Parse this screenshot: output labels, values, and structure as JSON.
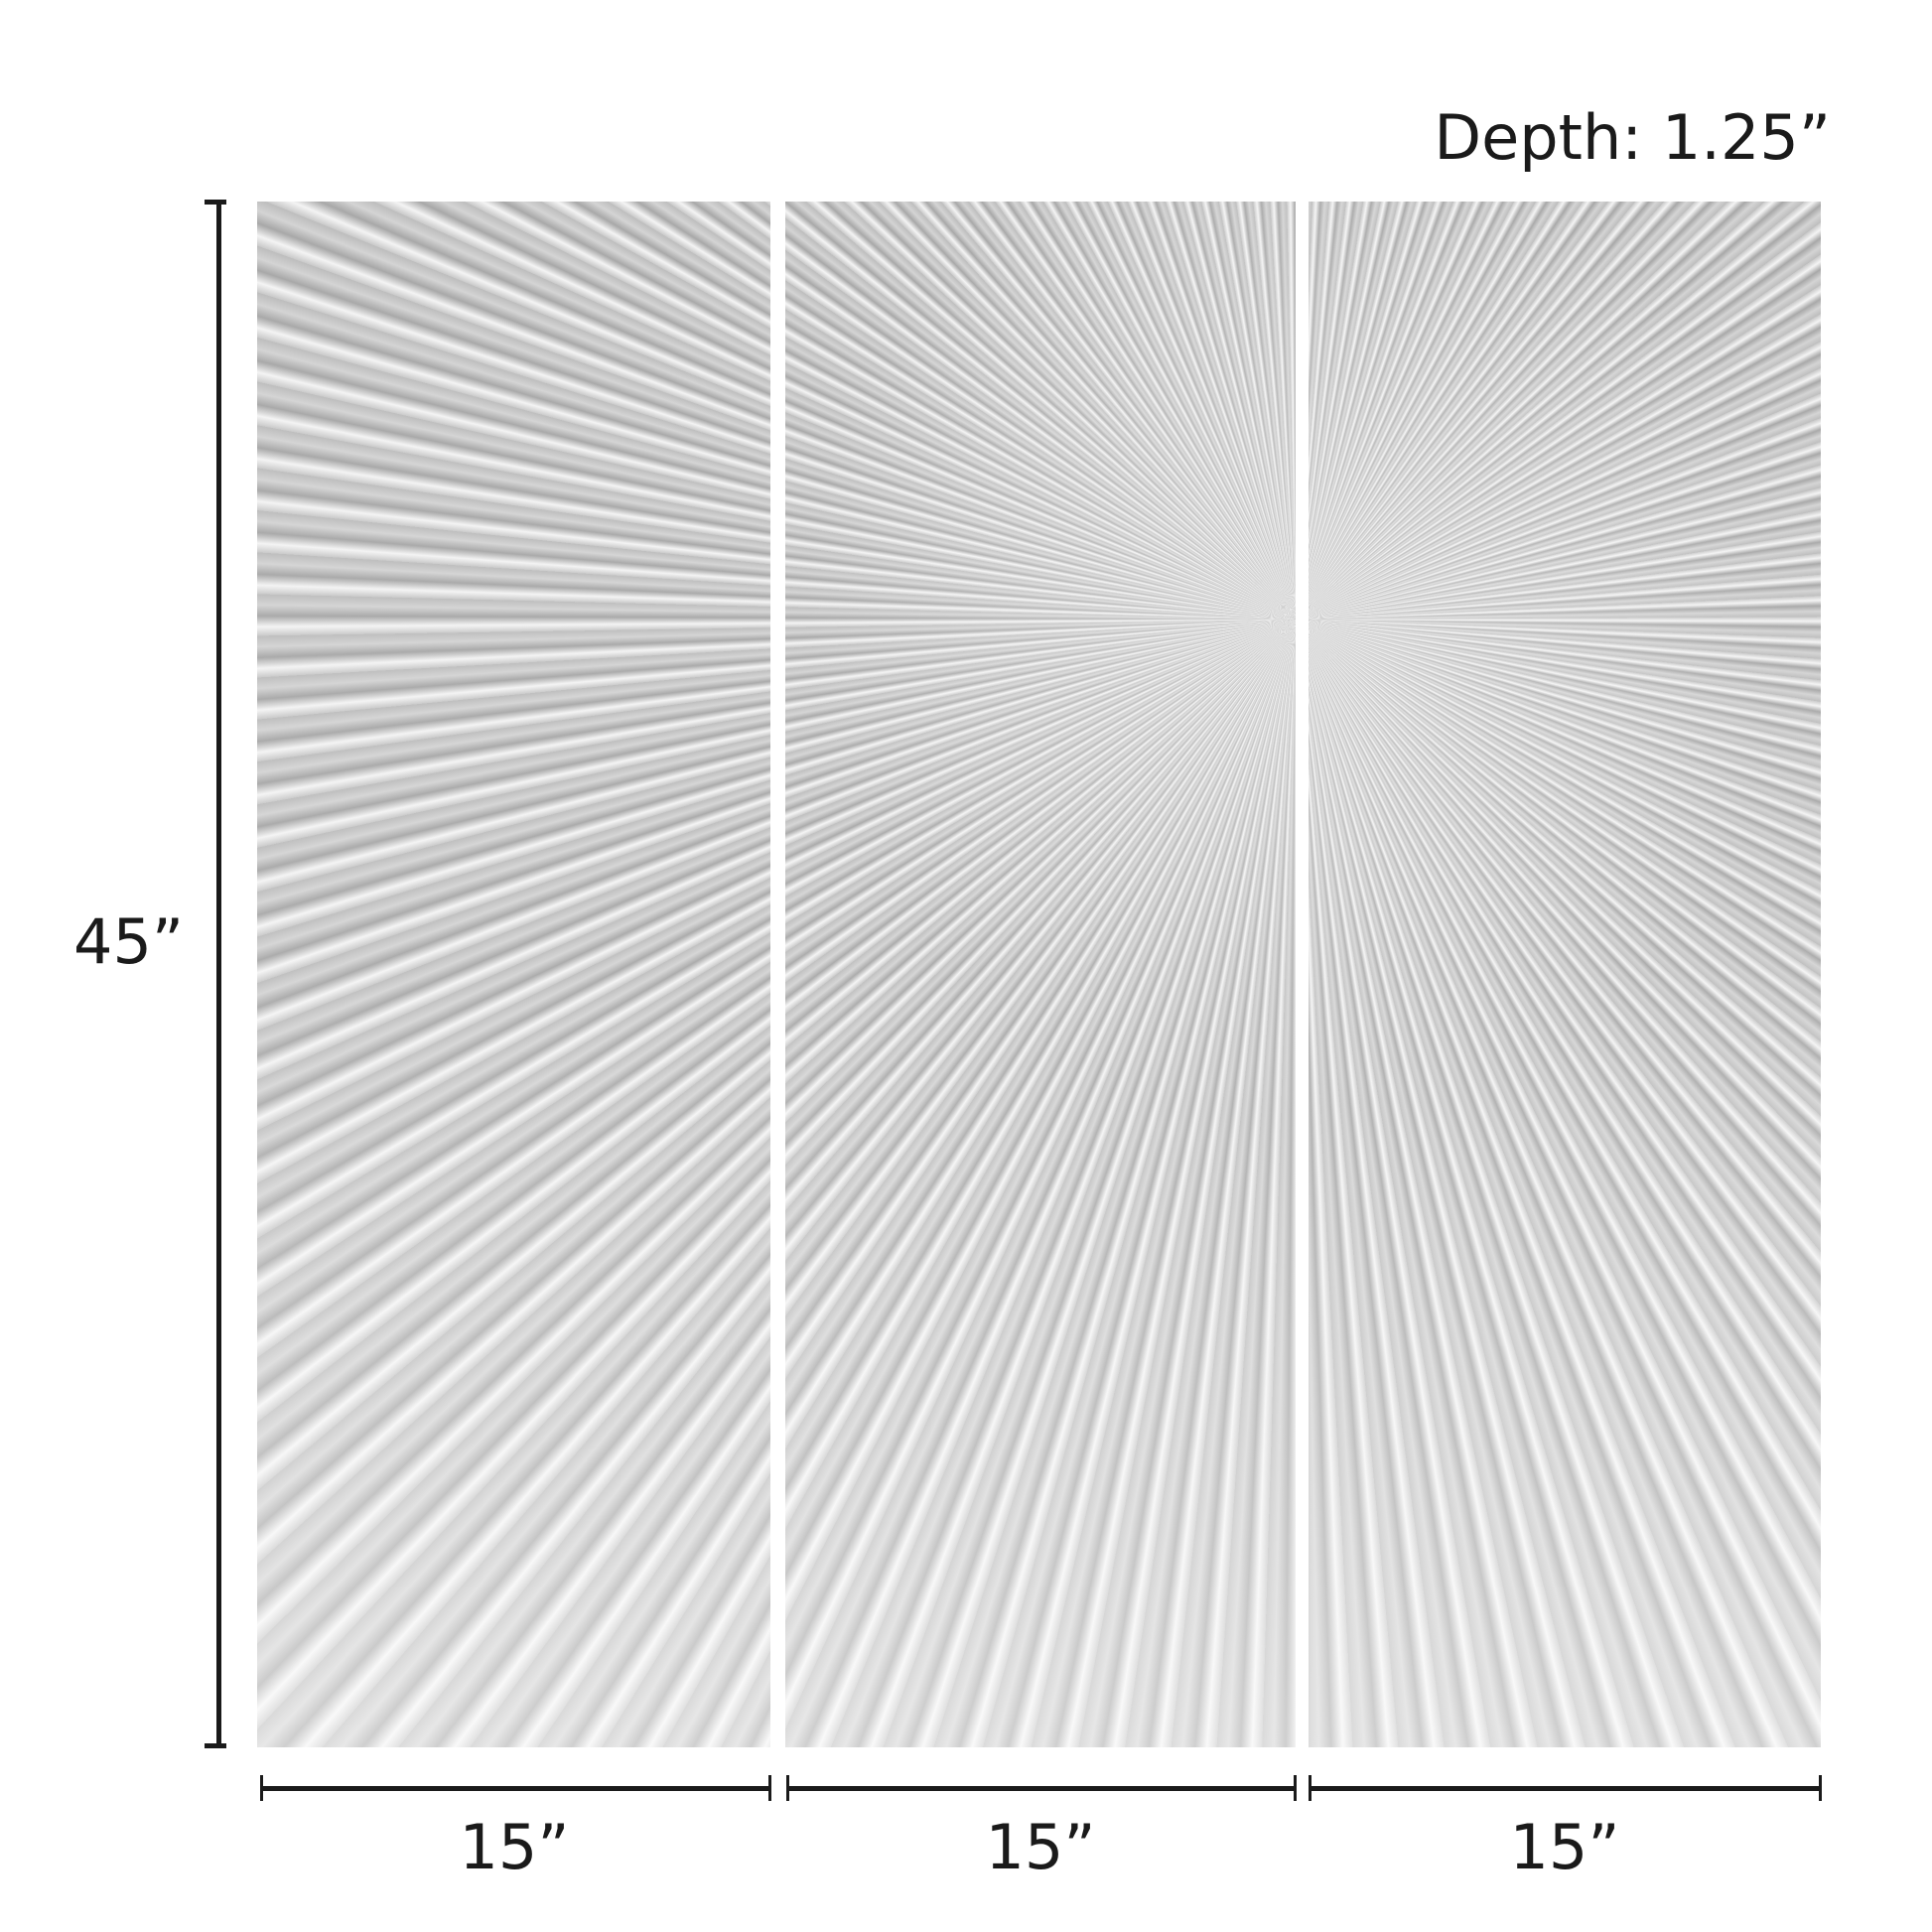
{
  "depth_label": "Depth: 1.25”",
  "height_label": "45”",
  "panel_widths": [
    "15”",
    "15”",
    "15”"
  ],
  "panel_count": 3,
  "panel_color": "#c8c8c8"
}
